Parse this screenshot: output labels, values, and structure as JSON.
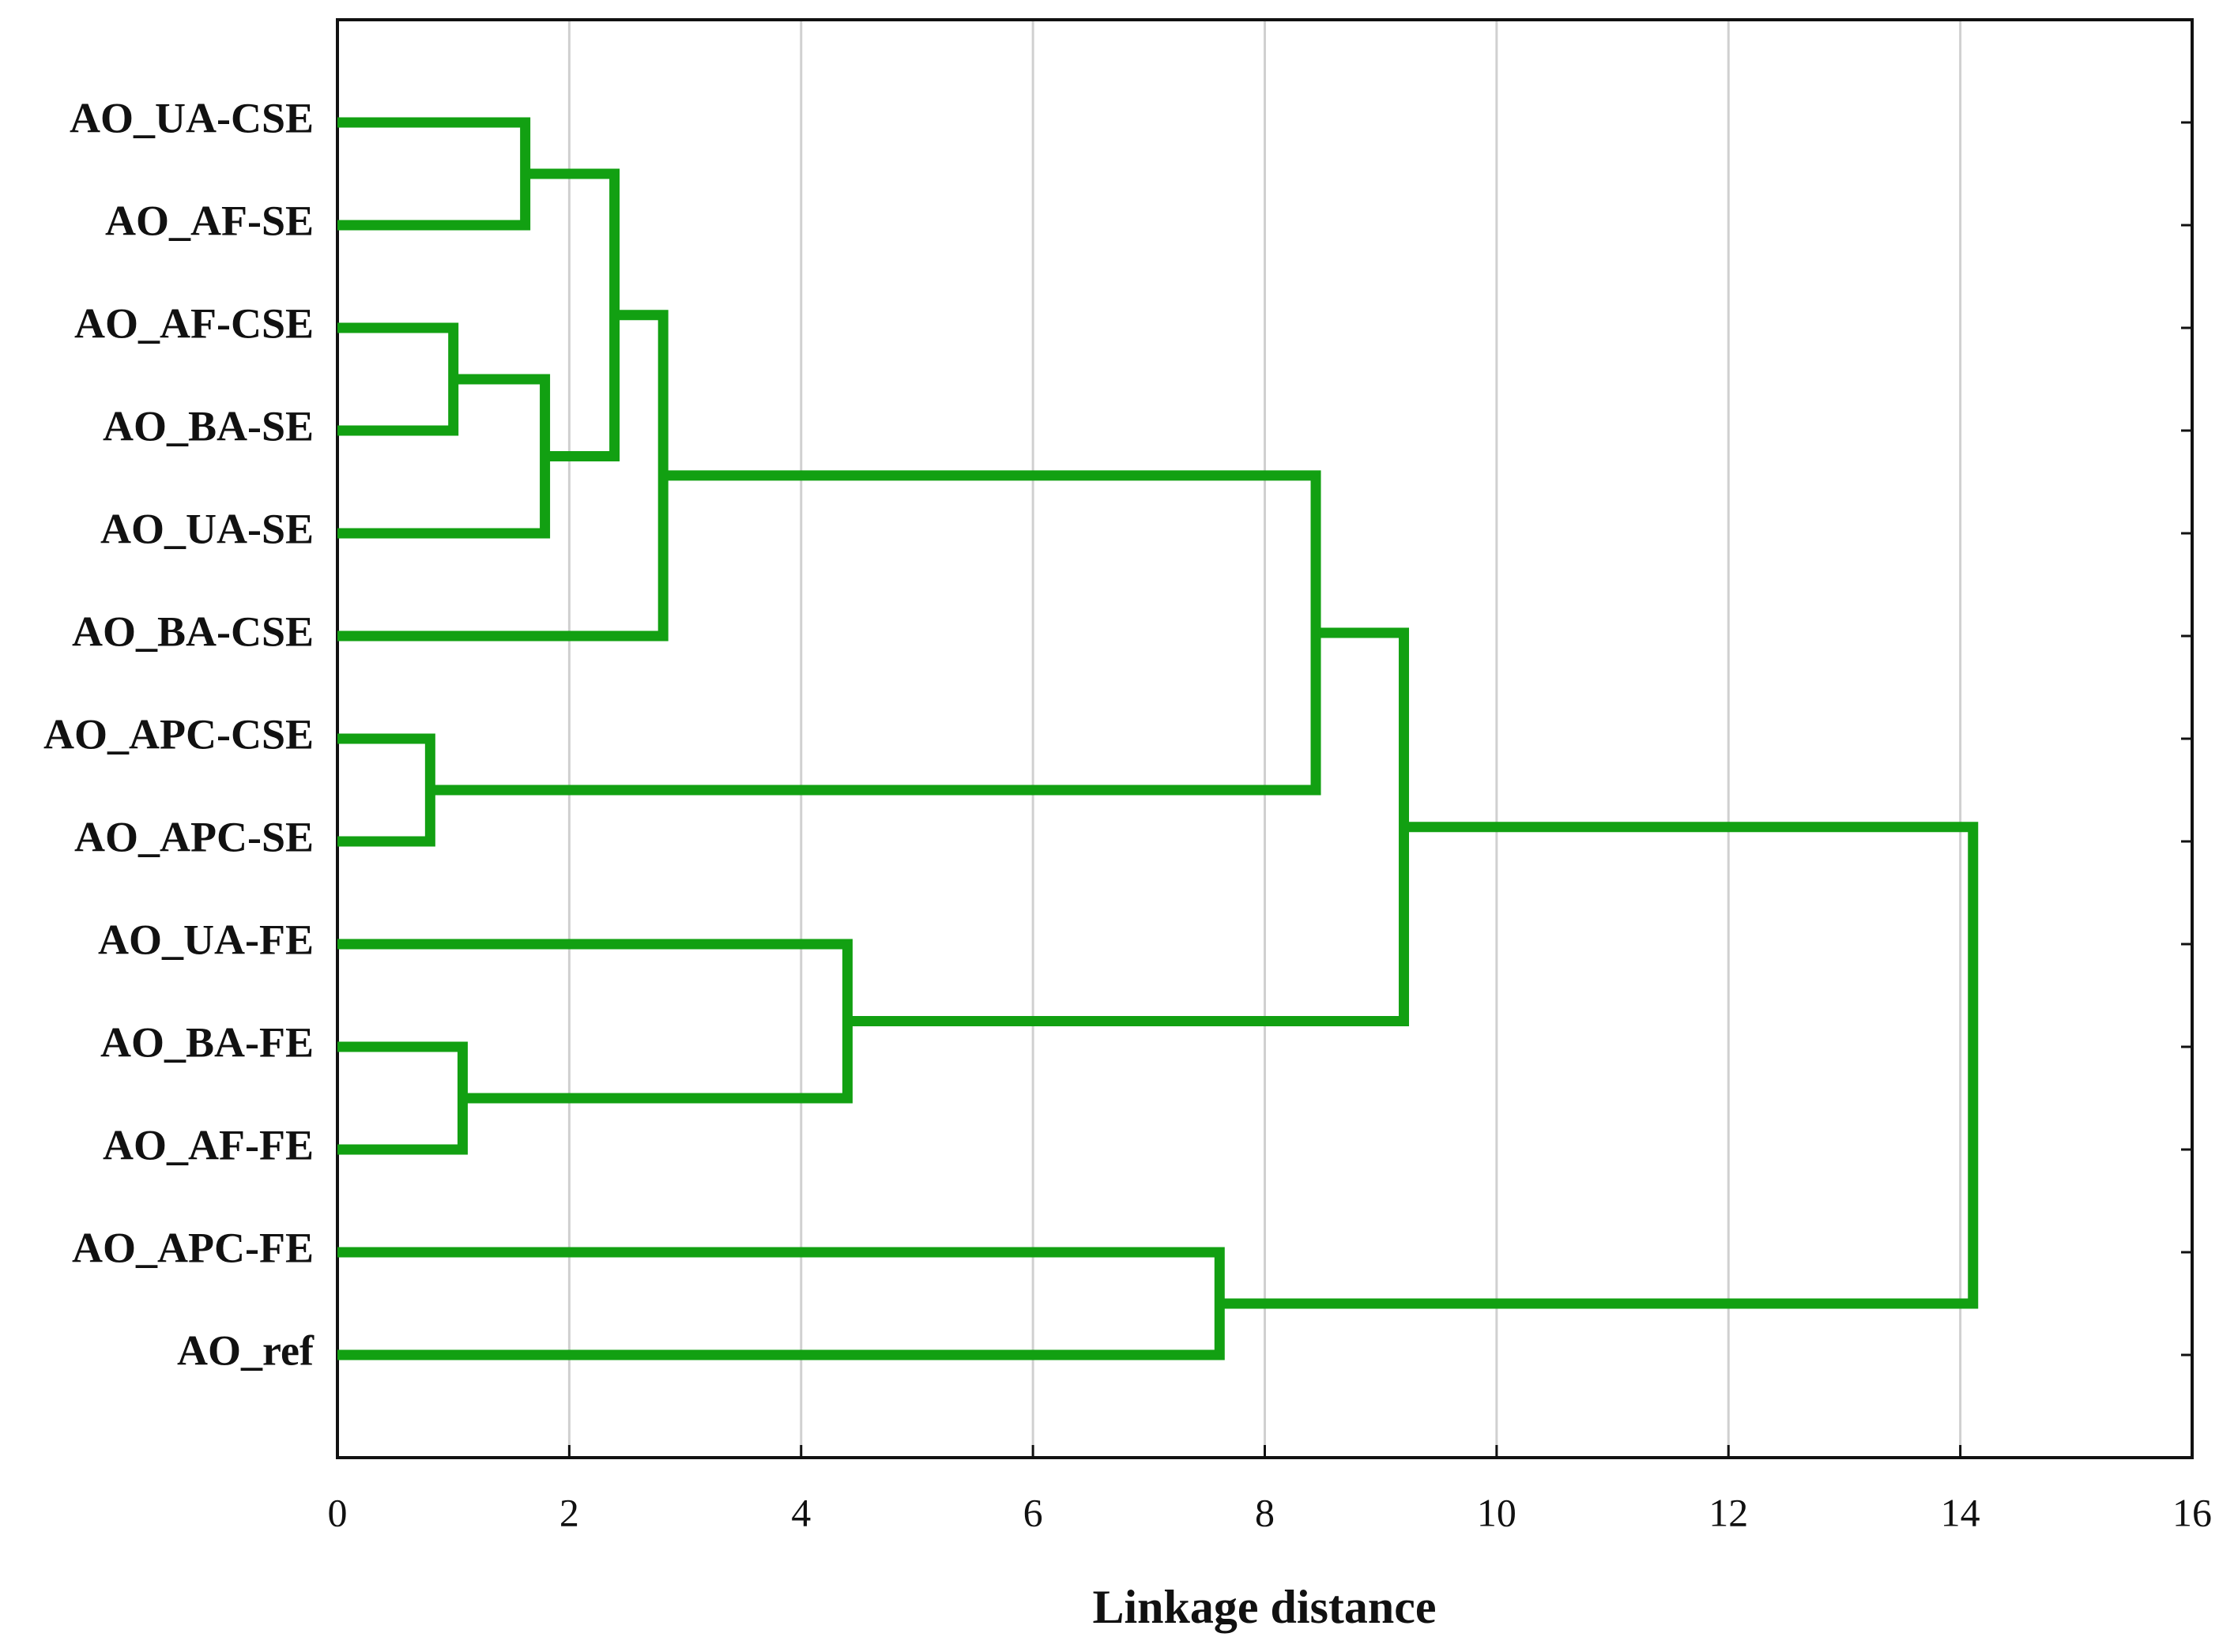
{
  "chart_data": {
    "type": "dendrogram",
    "x_label": "Linkage distance",
    "leaves": [
      "AO_UA-CSE",
      "AO_AF-SE",
      "AO_AF-CSE",
      "AO_BA-SE",
      "AO_UA-SE",
      "AO_BA-CSE",
      "AO_APC-CSE",
      "AO_APC-SE",
      "AO_UA-FE",
      "AO_BA-FE",
      "AO_AF-FE",
      "AO_APC-FE",
      "AO_ref"
    ],
    "merges": [
      {
        "children": [
          0,
          1
        ],
        "height": 1.62
      },
      {
        "children": [
          2,
          3
        ],
        "height": 1.0
      },
      {
        "children": [
          14,
          4
        ],
        "height": 1.79
      },
      {
        "children": [
          13,
          15
        ],
        "height": 2.39
      },
      {
        "children": [
          16,
          5
        ],
        "height": 2.81
      },
      {
        "children": [
          6,
          7
        ],
        "height": 0.8
      },
      {
        "children": [
          17,
          18
        ],
        "height": 8.44
      },
      {
        "children": [
          9,
          10
        ],
        "height": 1.08
      },
      {
        "children": [
          8,
          20
        ],
        "height": 4.4
      },
      {
        "children": [
          19,
          21
        ],
        "height": 9.2
      },
      {
        "children": [
          11,
          12
        ],
        "height": 7.61
      },
      {
        "children": [
          22,
          23
        ],
        "height": 14.11
      }
    ],
    "color": "#12a012",
    "xlim": [
      0,
      16
    ],
    "xticks": [
      0,
      2,
      4,
      6,
      8,
      10,
      12,
      14,
      16
    ],
    "grid": true
  }
}
